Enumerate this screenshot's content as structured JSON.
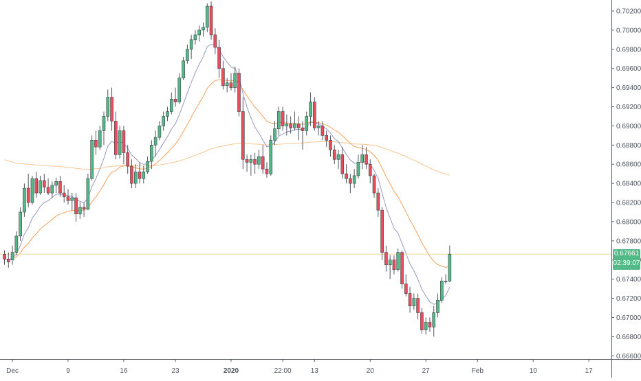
{
  "chart_data": {
    "type": "candlestick",
    "instrument_note": "",
    "ylim": [
      0.66566,
      0.70286
    ],
    "y_ticks": [
      "0.70200",
      "0.70000",
      "0.69800",
      "0.69600",
      "0.69400",
      "0.69200",
      "0.69000",
      "0.68800",
      "0.68600",
      "0.68400",
      "0.68200",
      "0.68000",
      "0.67800",
      "0.67600",
      "0.67400",
      "0.67200",
      "0.67000",
      "0.66800",
      "0.66600"
    ],
    "x_ticks": [
      {
        "label": "Dec",
        "bar": 2
      },
      {
        "label": "9",
        "bar": 16
      },
      {
        "label": "16",
        "bar": 30
      },
      {
        "label": "23",
        "bar": 43
      },
      {
        "label": "2020",
        "bar": 57,
        "bold": true
      },
      {
        "label": "22:00",
        "bar": 70
      },
      {
        "label": "13",
        "bar": 78
      },
      {
        "label": "20",
        "bar": 92
      },
      {
        "label": "27",
        "bar": 106
      },
      {
        "label": "Feb",
        "bar": 119
      },
      {
        "label": "10",
        "bar": 133
      },
      {
        "label": "17",
        "bar": 147
      }
    ],
    "candles": [
      [
        0.6766,
        0.677,
        0.6755,
        0.6761
      ],
      [
        0.6761,
        0.6768,
        0.6752,
        0.6758
      ],
      [
        0.676,
        0.6775,
        0.6755,
        0.6768
      ],
      [
        0.6768,
        0.679,
        0.6765,
        0.6785
      ],
      [
        0.6785,
        0.6815,
        0.678,
        0.681
      ],
      [
        0.681,
        0.684,
        0.6805,
        0.6835
      ],
      [
        0.6835,
        0.685,
        0.6815,
        0.682
      ],
      [
        0.682,
        0.6848,
        0.6818,
        0.6845
      ],
      [
        0.6845,
        0.6852,
        0.6825,
        0.683
      ],
      [
        0.683,
        0.6848,
        0.6828,
        0.6843
      ],
      [
        0.6843,
        0.685,
        0.683,
        0.6836
      ],
      [
        0.6836,
        0.6845,
        0.6828,
        0.683
      ],
      [
        0.683,
        0.6842,
        0.6825,
        0.6838
      ],
      [
        0.6838,
        0.6846,
        0.683,
        0.6842
      ],
      [
        0.6842,
        0.6848,
        0.6826,
        0.683
      ],
      [
        0.683,
        0.6838,
        0.682,
        0.6826
      ],
      [
        0.6826,
        0.6834,
        0.6818,
        0.6822
      ],
      [
        0.6822,
        0.683,
        0.6812,
        0.6825
      ],
      [
        0.6825,
        0.683,
        0.68,
        0.6808
      ],
      [
        0.6808,
        0.682,
        0.6803,
        0.6815
      ],
      [
        0.6815,
        0.682,
        0.6805,
        0.6813
      ],
      [
        0.6813,
        0.685,
        0.6812,
        0.6845
      ],
      [
        0.6845,
        0.689,
        0.6843,
        0.6885
      ],
      [
        0.6885,
        0.6895,
        0.687,
        0.6878
      ],
      [
        0.6878,
        0.69,
        0.6875,
        0.6895
      ],
      [
        0.6895,
        0.6915,
        0.688,
        0.691
      ],
      [
        0.691,
        0.6938,
        0.6905,
        0.693
      ],
      [
        0.693,
        0.694,
        0.6895,
        0.6905
      ],
      [
        0.6905,
        0.6915,
        0.6865,
        0.687
      ],
      [
        0.687,
        0.69,
        0.6866,
        0.6895
      ],
      [
        0.6895,
        0.69,
        0.686,
        0.6872
      ],
      [
        0.6872,
        0.688,
        0.685,
        0.6858
      ],
      [
        0.6858,
        0.6865,
        0.6835,
        0.684
      ],
      [
        0.684,
        0.686,
        0.6835,
        0.6852
      ],
      [
        0.6852,
        0.6862,
        0.684,
        0.6845
      ],
      [
        0.6845,
        0.6858,
        0.684,
        0.6852
      ],
      [
        0.6852,
        0.6868,
        0.685,
        0.6863
      ],
      [
        0.6863,
        0.6885,
        0.6855,
        0.688
      ],
      [
        0.688,
        0.6895,
        0.6868,
        0.6888
      ],
      [
        0.6888,
        0.6905,
        0.6885,
        0.69
      ],
      [
        0.69,
        0.6915,
        0.6895,
        0.691
      ],
      [
        0.691,
        0.692,
        0.6905,
        0.6915
      ],
      [
        0.6915,
        0.6935,
        0.6912,
        0.6928
      ],
      [
        0.6928,
        0.694,
        0.692,
        0.6925
      ],
      [
        0.6925,
        0.6955,
        0.6923,
        0.695
      ],
      [
        0.695,
        0.6972,
        0.6948,
        0.6968
      ],
      [
        0.6968,
        0.6985,
        0.6965,
        0.698
      ],
      [
        0.698,
        0.6995,
        0.697,
        0.699
      ],
      [
        0.699,
        0.7,
        0.6985,
        0.6995
      ],
      [
        0.6995,
        0.7005,
        0.6988,
        0.7
      ],
      [
        0.7,
        0.7008,
        0.6993,
        0.7003
      ],
      [
        0.7003,
        0.7028,
        0.6998,
        0.7025
      ],
      [
        0.7025,
        0.703,
        0.699,
        0.6995
      ],
      [
        0.6995,
        0.7002,
        0.6975,
        0.6982
      ],
      [
        0.6982,
        0.699,
        0.695,
        0.696
      ],
      [
        0.696,
        0.6968,
        0.6938,
        0.6942
      ],
      [
        0.6942,
        0.695,
        0.6935,
        0.6945
      ],
      [
        0.6945,
        0.6955,
        0.6937,
        0.694
      ],
      [
        0.694,
        0.6962,
        0.6935,
        0.6955
      ],
      [
        0.6955,
        0.696,
        0.691,
        0.6915
      ],
      [
        0.6915,
        0.693,
        0.6855,
        0.6865
      ],
      [
        0.6865,
        0.687,
        0.6852,
        0.6862
      ],
      [
        0.6862,
        0.687,
        0.6848,
        0.6865
      ],
      [
        0.6865,
        0.6872,
        0.685,
        0.686
      ],
      [
        0.686,
        0.6875,
        0.6855,
        0.6868
      ],
      [
        0.6868,
        0.688,
        0.685,
        0.6855
      ],
      [
        0.6855,
        0.6862,
        0.6846,
        0.685
      ],
      [
        0.685,
        0.689,
        0.6848,
        0.6885
      ],
      [
        0.6885,
        0.6905,
        0.688,
        0.6897
      ],
      [
        0.6897,
        0.692,
        0.689,
        0.6915
      ],
      [
        0.6915,
        0.692,
        0.6895,
        0.69
      ],
      [
        0.69,
        0.6912,
        0.689,
        0.6902
      ],
      [
        0.6902,
        0.691,
        0.6892,
        0.6898
      ],
      [
        0.6898,
        0.6915,
        0.6895,
        0.6902
      ],
      [
        0.6902,
        0.691,
        0.6885,
        0.6898
      ],
      [
        0.6898,
        0.6905,
        0.6875,
        0.6895
      ],
      [
        0.6895,
        0.6915,
        0.689,
        0.691
      ],
      [
        0.691,
        0.6935,
        0.69,
        0.6925
      ],
      [
        0.6925,
        0.693,
        0.6895,
        0.6898
      ],
      [
        0.6898,
        0.6905,
        0.689,
        0.69
      ],
      [
        0.69,
        0.6905,
        0.6885,
        0.689
      ],
      [
        0.689,
        0.6895,
        0.6878,
        0.6885
      ],
      [
        0.6885,
        0.689,
        0.6868,
        0.6875
      ],
      [
        0.6875,
        0.688,
        0.686,
        0.6865
      ],
      [
        0.6865,
        0.6875,
        0.6855,
        0.687
      ],
      [
        0.687,
        0.6878,
        0.6845,
        0.685
      ],
      [
        0.685,
        0.686,
        0.684,
        0.6845
      ],
      [
        0.6845,
        0.685,
        0.683,
        0.684
      ],
      [
        0.684,
        0.6855,
        0.6835,
        0.6848
      ],
      [
        0.6848,
        0.687,
        0.6845,
        0.6862
      ],
      [
        0.6862,
        0.688,
        0.6855,
        0.687
      ],
      [
        0.687,
        0.6878,
        0.6855,
        0.686
      ],
      [
        0.686,
        0.6865,
        0.684,
        0.6848
      ],
      [
        0.6848,
        0.685,
        0.6825,
        0.683
      ],
      [
        0.683,
        0.6835,
        0.6805,
        0.6812
      ],
      [
        0.6812,
        0.6815,
        0.676,
        0.6768
      ],
      [
        0.6768,
        0.6775,
        0.6748,
        0.6755
      ],
      [
        0.6755,
        0.6765,
        0.674,
        0.676
      ],
      [
        0.676,
        0.6765,
        0.6745,
        0.675
      ],
      [
        0.675,
        0.6772,
        0.6748,
        0.6768
      ],
      [
        0.6768,
        0.677,
        0.673,
        0.6735
      ],
      [
        0.6735,
        0.6745,
        0.6722,
        0.6725
      ],
      [
        0.6725,
        0.6732,
        0.6705,
        0.6712
      ],
      [
        0.6712,
        0.6725,
        0.6708,
        0.672
      ],
      [
        0.672,
        0.6725,
        0.6698,
        0.6705
      ],
      [
        0.6705,
        0.671,
        0.6683,
        0.6687
      ],
      [
        0.6687,
        0.67,
        0.6682,
        0.6695
      ],
      [
        0.6695,
        0.67,
        0.6685,
        0.669
      ],
      [
        0.669,
        0.6712,
        0.668,
        0.6705
      ],
      [
        0.6705,
        0.6725,
        0.67,
        0.6718
      ],
      [
        0.6718,
        0.6742,
        0.6715,
        0.6738
      ],
      [
        0.6738,
        0.6745,
        0.6735,
        0.6738
      ],
      [
        0.6738,
        0.6775,
        0.6737,
        0.67661
      ]
    ],
    "last_price": "0.67661",
    "countdown": "02:39:07",
    "colors": {
      "up": "#53b987",
      "down": "#eb4d5c",
      "ma_fast": "#9598c6",
      "ma_mid": "#f7a15c",
      "ma_slow": "#f8c58f",
      "last_line": "#f2d7a0",
      "grid": "#f0f3fa",
      "axis_text": "#4c525e"
    }
  }
}
